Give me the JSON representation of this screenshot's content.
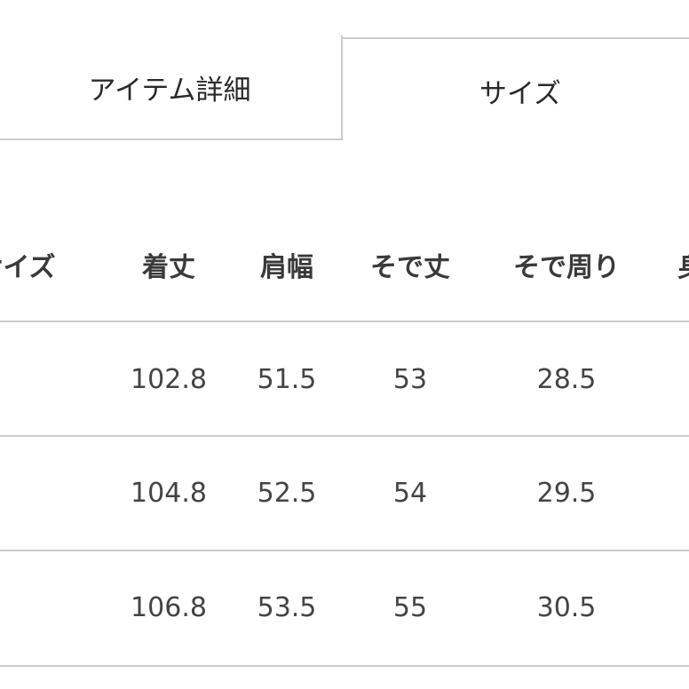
{
  "tabs": [
    {
      "label": "アイテム詳細",
      "active": false
    },
    {
      "label": "サイズ",
      "active": true
    }
  ],
  "table": {
    "headers": [
      "サイズ",
      "着丈",
      "肩幅",
      "そで丈",
      "そで周り",
      "身"
    ],
    "rows": [
      [
        "",
        "102.8",
        "51.5",
        "53",
        "28.5",
        ""
      ],
      [
        "",
        "104.8",
        "52.5",
        "54",
        "29.5",
        ""
      ],
      [
        "",
        "106.8",
        "53.5",
        "55",
        "30.5",
        ""
      ]
    ]
  }
}
